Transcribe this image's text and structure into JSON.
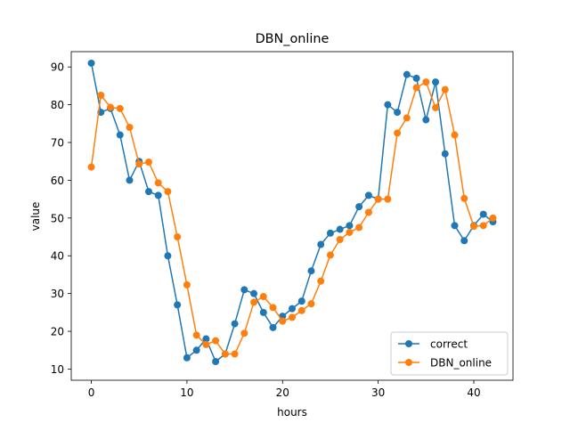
{
  "chart_data": {
    "type": "line",
    "title": "DBN_online",
    "xlabel": "hours",
    "ylabel": "value",
    "xlim": [
      -2.1,
      44.1
    ],
    "ylim": [
      7.05,
      94.05
    ],
    "xticks": [
      0,
      10,
      20,
      30,
      40
    ],
    "yticks": [
      10,
      20,
      30,
      40,
      50,
      60,
      70,
      80,
      90
    ],
    "grid": false,
    "legend_position": "lower right",
    "x": [
      0,
      1,
      2,
      3,
      4,
      5,
      6,
      7,
      8,
      9,
      10,
      11,
      12,
      13,
      14,
      15,
      16,
      17,
      18,
      19,
      20,
      21,
      22,
      23,
      24,
      25,
      26,
      27,
      28,
      29,
      30,
      31,
      32,
      33,
      34,
      35,
      36,
      37,
      38,
      39,
      40,
      41,
      42
    ],
    "series": [
      {
        "name": "correct",
        "color": "#1f77b4",
        "marker": "circle",
        "values": [
          91,
          78,
          79,
          72,
          60,
          65,
          57,
          56,
          40,
          27,
          13,
          15,
          18,
          12,
          14,
          22,
          31,
          30,
          25,
          21,
          24,
          26,
          28,
          36,
          43,
          46,
          47,
          48,
          53,
          56,
          55,
          80,
          78,
          88,
          87,
          76,
          86,
          67,
          48,
          44,
          48,
          51,
          49
        ]
      },
      {
        "name": "DBN_online",
        "color": "#ff7f0e",
        "marker": "circle",
        "values": [
          63.5,
          82.5,
          79.3,
          79,
          74,
          64.3,
          64.8,
          59.3,
          57,
          45,
          32.3,
          19,
          16.5,
          17.5,
          14,
          14,
          19.5,
          27.7,
          29.2,
          26.3,
          22.7,
          23.7,
          25.5,
          27.3,
          33.3,
          40.2,
          44.3,
          46.2,
          47.5,
          51.5,
          55,
          55,
          72.5,
          76.5,
          84.5,
          86,
          79.2,
          84,
          72,
          55.2,
          47.8,
          48,
          50
        ]
      }
    ]
  }
}
